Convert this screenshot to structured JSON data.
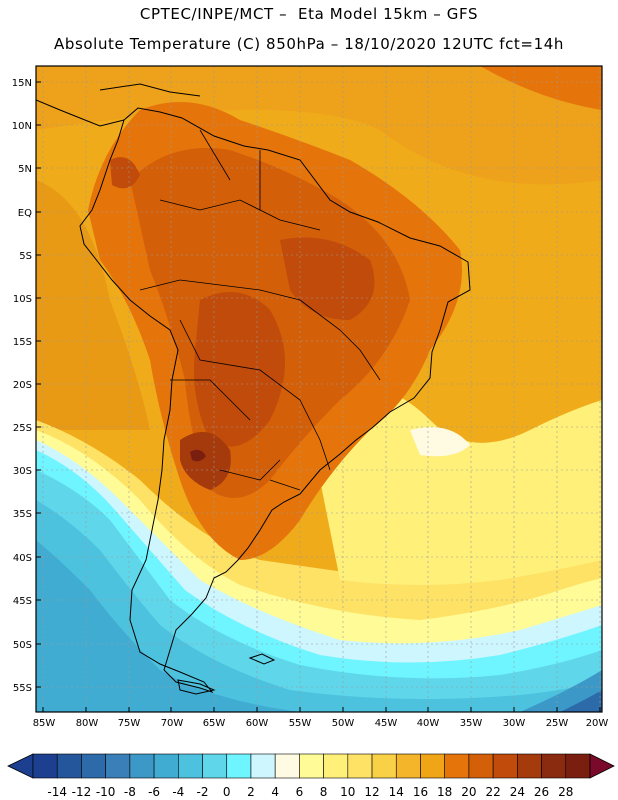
{
  "header": {
    "line1": "CPTEC/INPE/MCT –  Eta Model 15km – GFS",
    "line2": "Absolute Temperature (C) 850hPa – 18/10/2020 12UTC fct=14h"
  },
  "map": {
    "region": "South America",
    "lat_ticks": [
      "15N",
      "10N",
      "5N",
      "EQ",
      "5S",
      "10S",
      "15S",
      "20S",
      "25S",
      "30S",
      "35S",
      "40S",
      "45S",
      "50S",
      "55S"
    ],
    "lon_ticks": [
      "85W",
      "80W",
      "75W",
      "70W",
      "65W",
      "60W",
      "55W",
      "50W",
      "45W",
      "40W",
      "35W",
      "30W",
      "25W",
      "20W"
    ]
  },
  "colorbar": {
    "labels": [
      "-14",
      "-12",
      "-10",
      "-8",
      "-6",
      "-4",
      "-2",
      "0",
      "2",
      "4",
      "6",
      "8",
      "10",
      "12",
      "14",
      "16",
      "18",
      "20",
      "22",
      "24",
      "26",
      "28"
    ],
    "colors": [
      "#1c3f8f",
      "#24569c",
      "#2d6aaa",
      "#3a7fb8",
      "#3c98c6",
      "#40acd2",
      "#4dc2df",
      "#5fd6ea",
      "#6ff5ff",
      "#cdf6ff",
      "#fffbe3",
      "#fffb96",
      "#fff07a",
      "#fee265",
      "#f9d146",
      "#f4b52a",
      "#efa516",
      "#e5750b",
      "#d45f09",
      "#c04b0a",
      "#a53a0c",
      "#8a2a0e",
      "#7a1f10"
    ]
  }
}
